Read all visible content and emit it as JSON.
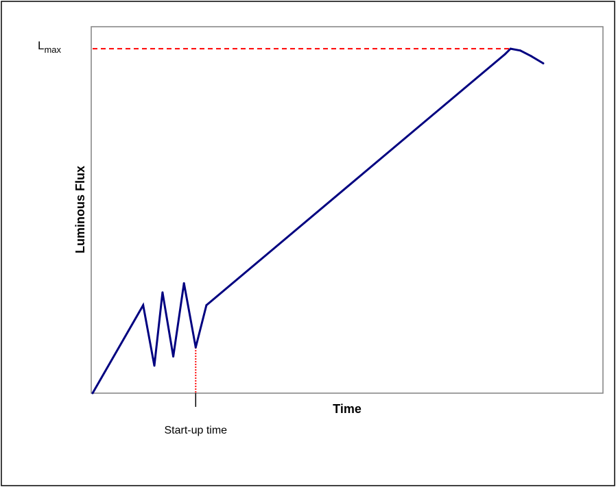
{
  "chart_data": {
    "type": "line",
    "xlabel": "Time",
    "ylabel": "Luminous Flux",
    "xlim": [
      0,
      100
    ],
    "ylim": [
      0,
      100
    ],
    "grid": false,
    "legend": "none",
    "series": [
      {
        "x": [
          0,
          9.9,
          12.1,
          13.7,
          15.8,
          17.9,
          20.2,
          22.3,
          80.8,
          81.9,
          83.8,
          85.9,
          88.3
        ],
        "y": [
          0,
          24.0,
          7.5,
          27.5,
          10.0,
          30.0,
          12.5,
          24.0,
          92.5,
          94.0,
          93.5,
          92.0,
          90.0
        ],
        "color": "#000080"
      }
    ],
    "reference_lines": {
      "max_level": {
        "label_main": "L",
        "label_sub": "max",
        "y": 94.0,
        "color": "#ff0000"
      },
      "startup": {
        "label": "Start-up time",
        "x": 20.2,
        "color": "#ff0000"
      }
    }
  }
}
